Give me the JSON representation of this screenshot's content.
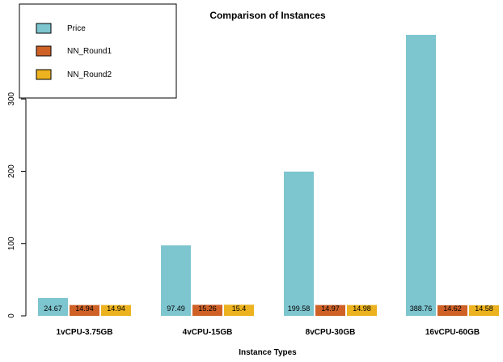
{
  "chart_data": {
    "type": "bar",
    "title": "Comparison of Instances",
    "xlabel": "Instance Types",
    "ylabel": "",
    "ylim": [
      0,
      388.76
    ],
    "yticks": [
      0,
      100,
      200,
      300
    ],
    "grid": false,
    "legend_position": "top-left",
    "categories": [
      "1vCPU-3.75GB",
      "4vCPU-15GB",
      "8vCPU-30GB",
      "16vCPU-60GB"
    ],
    "series": [
      {
        "name": "Price",
        "color": "#7dc5cf",
        "values": [
          24.67,
          97.49,
          199.58,
          388.76
        ],
        "labels": [
          "24.67",
          "97.49",
          "199.58",
          "388.76"
        ]
      },
      {
        "name": "NN_Round1",
        "color": "#cf6127",
        "values": [
          14.94,
          15.26,
          14.97,
          14.62
        ],
        "labels": [
          "14.94",
          "15.26",
          "14.97",
          "14.62"
        ]
      },
      {
        "name": "NN_Round2",
        "color": "#ecb21f",
        "values": [
          14.94,
          15.4,
          14.98,
          14.58
        ],
        "labels": [
          "14.94",
          "15.4",
          "14.98",
          "14.58"
        ]
      }
    ]
  }
}
